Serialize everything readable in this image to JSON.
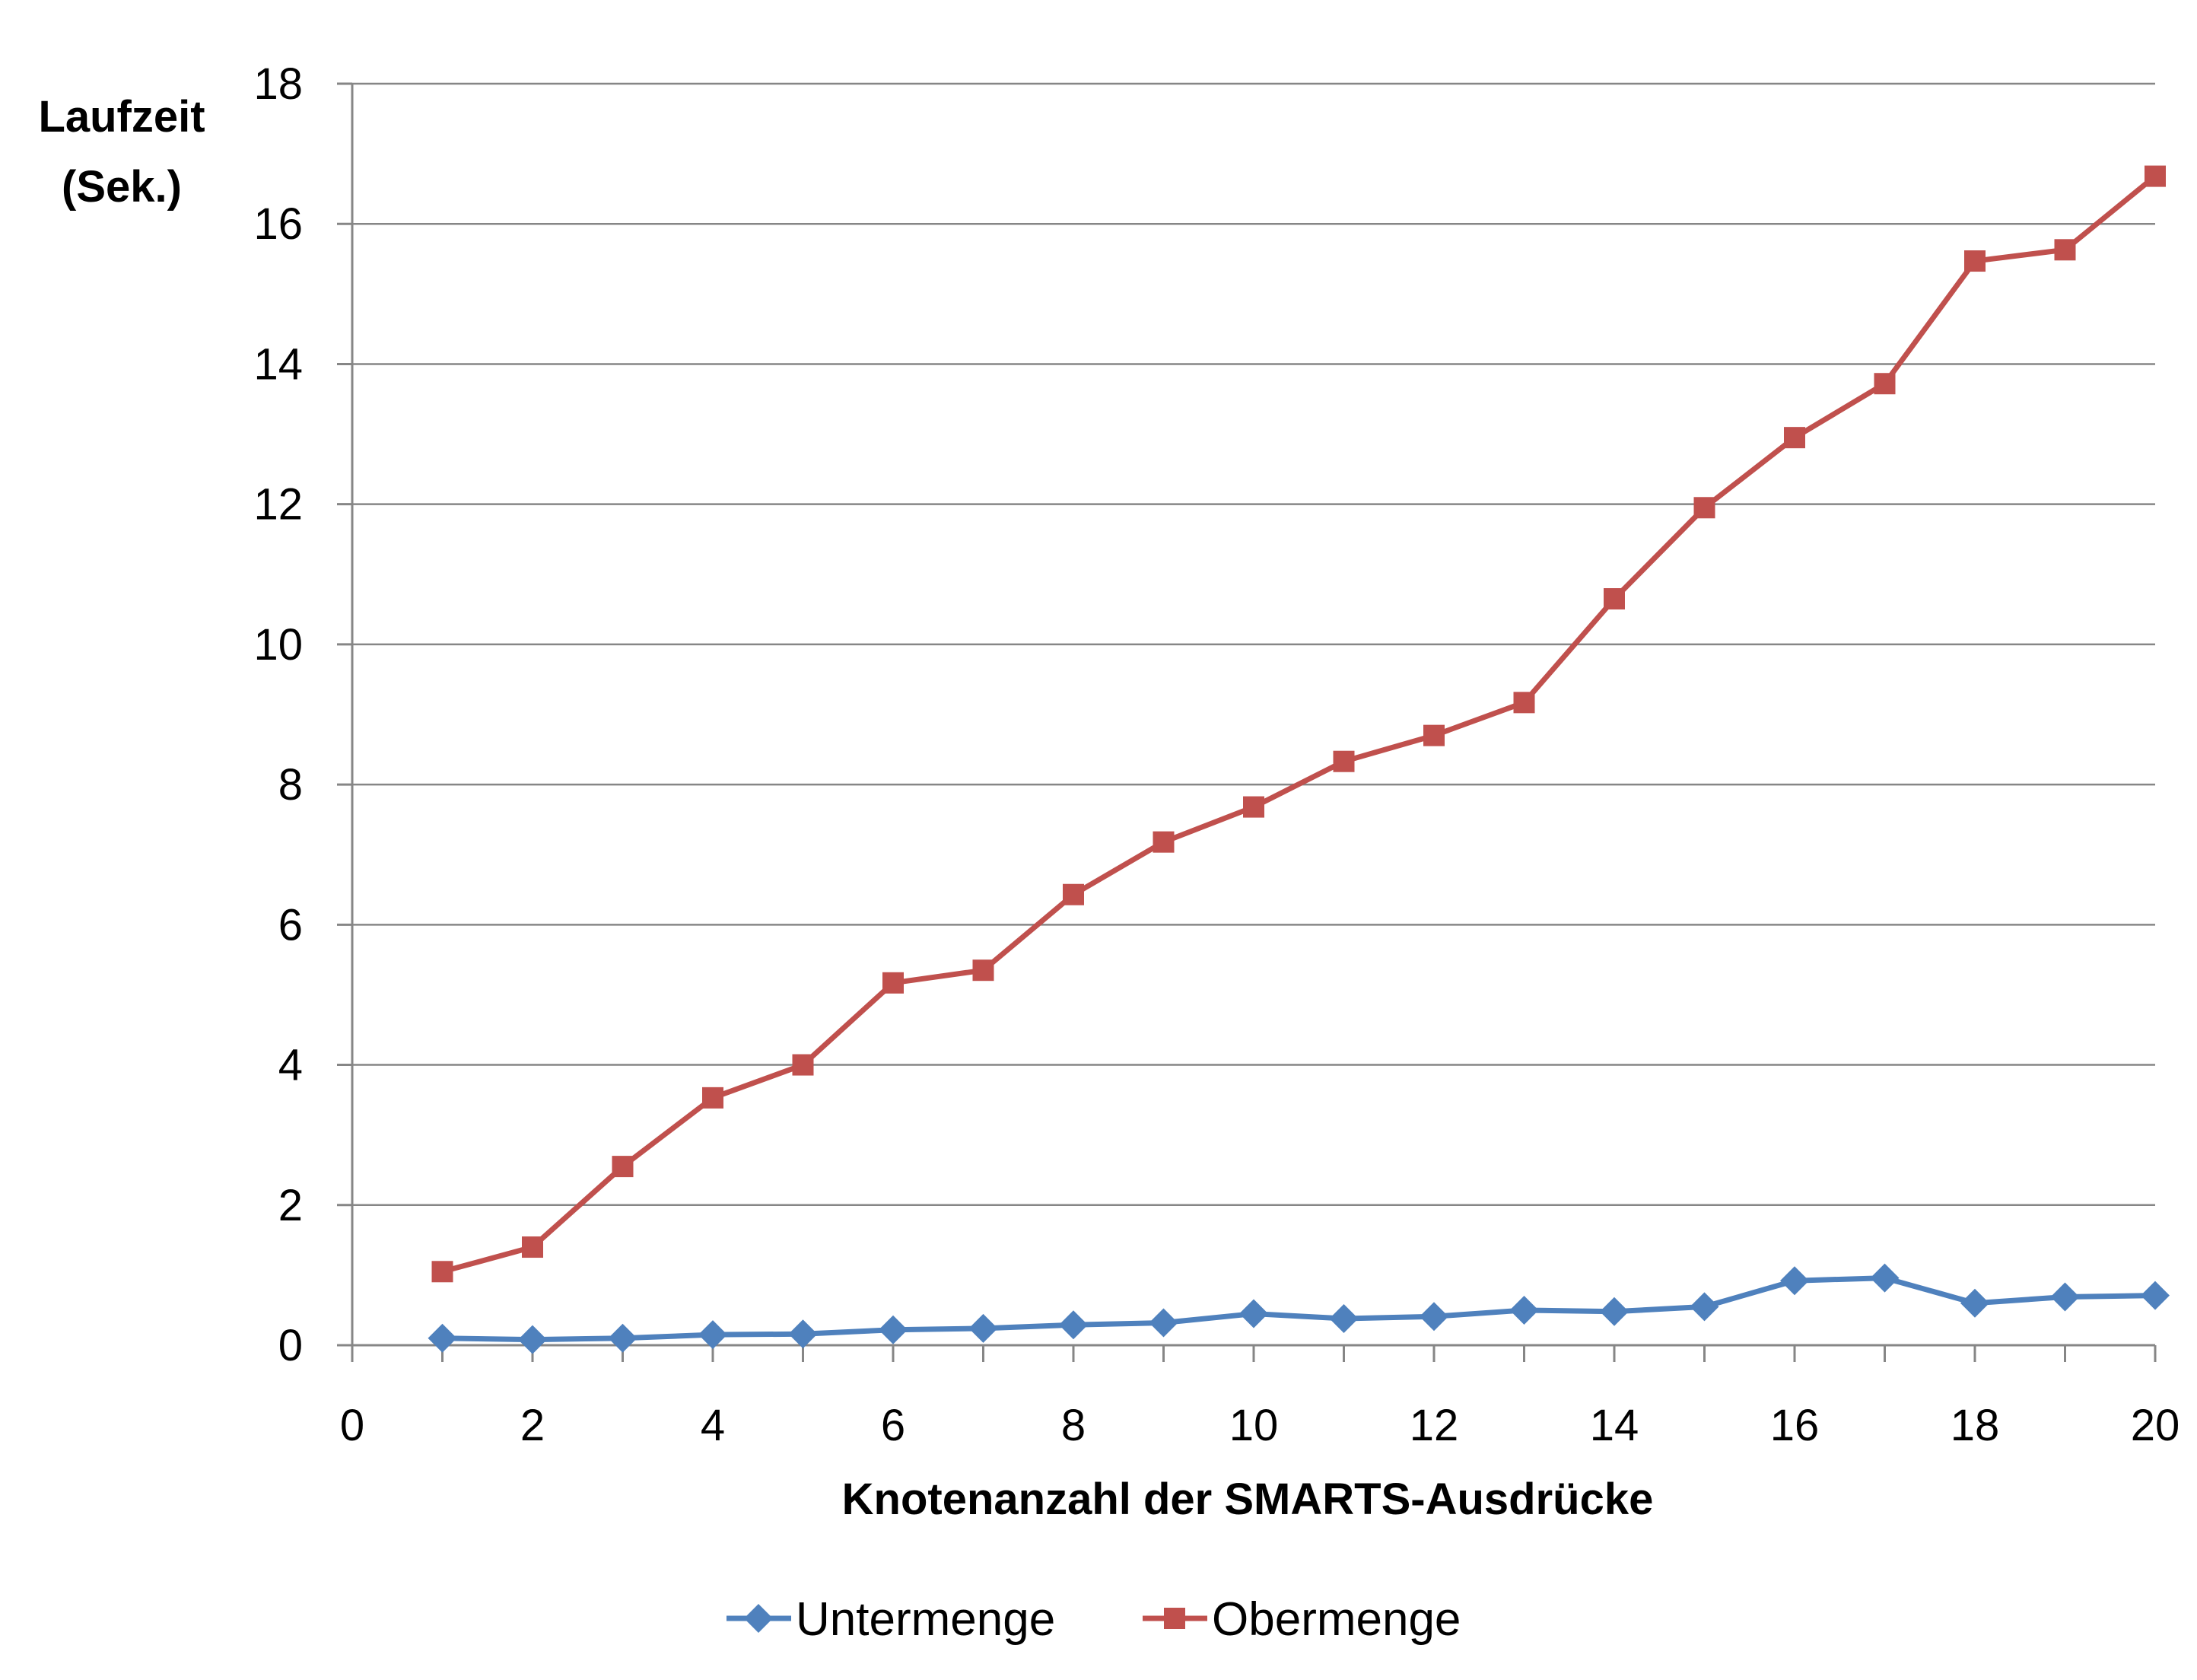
{
  "chart_data": {
    "type": "line",
    "title": "",
    "xlabel": "Knotenanzahl der SMARTS-Ausdrücke",
    "ylabel_lines": [
      "Laufzeit",
      "(Sek.)"
    ],
    "xlim": [
      0,
      20
    ],
    "ylim": [
      0,
      18
    ],
    "x_ticks": [
      0,
      2,
      4,
      6,
      8,
      10,
      12,
      14,
      16,
      18,
      20
    ],
    "y_ticks": [
      0,
      2,
      4,
      6,
      8,
      10,
      12,
      14,
      16,
      18
    ],
    "grid": "horizontal",
    "legend_position": "bottom",
    "x": [
      1,
      2,
      3,
      4,
      5,
      6,
      7,
      8,
      9,
      10,
      11,
      12,
      13,
      14,
      15,
      16,
      17,
      18,
      19,
      20
    ],
    "series": [
      {
        "name": "Untermenge",
        "color": "#4F81BD",
        "marker": "diamond",
        "values": [
          0.1,
          0.08,
          0.1,
          0.15,
          0.16,
          0.22,
          0.24,
          0.29,
          0.32,
          0.45,
          0.38,
          0.41,
          0.5,
          0.48,
          0.55,
          0.92,
          0.96,
          0.6,
          0.69,
          0.71
        ]
      },
      {
        "name": "Obermenge",
        "color": "#C0504D",
        "marker": "square",
        "values": [
          1.05,
          1.4,
          2.55,
          3.53,
          4.0,
          5.17,
          5.35,
          6.43,
          7.18,
          7.68,
          8.33,
          8.7,
          9.17,
          10.65,
          11.95,
          12.95,
          13.72,
          15.47,
          15.63,
          16.68
        ]
      }
    ]
  }
}
